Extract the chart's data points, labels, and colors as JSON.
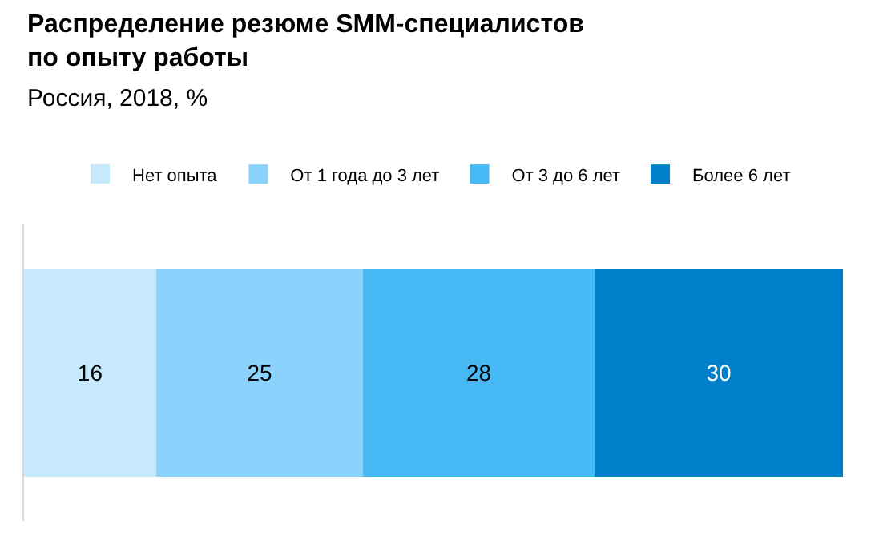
{
  "chart_data": {
    "type": "bar",
    "orientation": "horizontal",
    "stacked": true,
    "title": "Распределение резюме SMM-специалистов по опыту работы",
    "subtitle": "Россия, 2018, %",
    "categories": [
      null
    ],
    "series": [
      {
        "name": "Нет опыта",
        "color": "#c6e9fc",
        "values": [
          16
        ]
      },
      {
        "name": "От 1 года до 3 лет",
        "color": "#8bd3fc",
        "values": [
          25
        ]
      },
      {
        "name": "От 3 до 6 лет",
        "color": "#46b9f5",
        "values": [
          28
        ]
      },
      {
        "name": "Более 6 лет",
        "color": "#0080cb",
        "values": [
          30
        ]
      }
    ],
    "data_labels": true,
    "legend": "top",
    "tick_labels": false
  }
}
